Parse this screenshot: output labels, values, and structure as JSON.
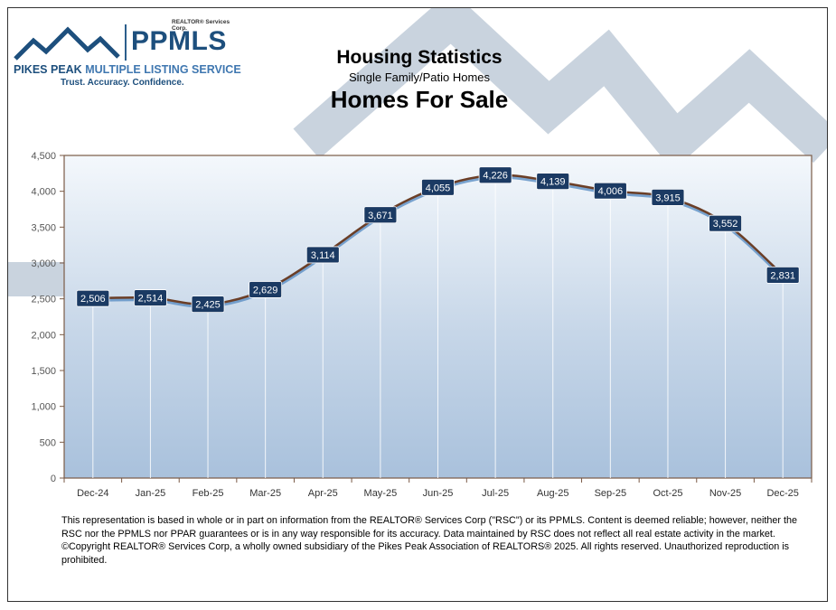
{
  "header": {
    "logo": {
      "realtor_corp": "REALTOR® Services Corp.",
      "ppmls": "PPMLS",
      "full_name_pikes_peak": "PIKES PEAK",
      "full_name_rest": "MULTIPLE LISTING SERVICE",
      "tagline": "Trust. Accuracy. Confidence."
    },
    "title": "Housing Statistics",
    "subtitle": "Single Family/Patio Homes",
    "chart_title": "Homes For Sale"
  },
  "colors": {
    "brand": "#1d4f7d",
    "watermark": "#c9d3de",
    "plot_top": "#f4f8fc",
    "plot_bottom": "#a9c1dc",
    "line": "#6b3e26",
    "label_bg": "#1b3a63"
  },
  "chart_data": {
    "type": "line",
    "title": "Homes For Sale",
    "xlabel": "",
    "ylabel": "",
    "categories": [
      "Dec-24",
      "Jan-25",
      "Feb-25",
      "Mar-25",
      "Apr-25",
      "May-25",
      "Jun-25",
      "Jul-25",
      "Aug-25",
      "Sep-25",
      "Oct-25",
      "Nov-25",
      "Dec-25"
    ],
    "series": [
      {
        "name": "Homes For Sale",
        "values": [
          2506,
          2514,
          2425,
          2629,
          3114,
          3671,
          4055,
          4226,
          4139,
          4006,
          3915,
          3552,
          2831
        ],
        "labels": [
          "2,506",
          "2,514",
          "2,425",
          "2,629",
          "3,114",
          "3,671",
          "4,055",
          "4,226",
          "4,139",
          "4,006",
          "3,915",
          "3,552",
          "2,831"
        ]
      }
    ],
    "ylim": [
      0,
      4500
    ],
    "yticks": [
      0,
      500,
      1000,
      1500,
      2000,
      2500,
      3000,
      3500,
      4000,
      4500
    ],
    "ytick_labels": [
      "0",
      "500",
      "1,000",
      "1,500",
      "2,000",
      "2,500",
      "3,000",
      "3,500",
      "4,000",
      "4,500"
    ],
    "grid": false,
    "legend": "none"
  },
  "footer": {
    "disclaimer": "This representation is based in whole or in part on information from the REALTOR® Services Corp (\"RSC\") or its PPMLS. Content is deemed reliable; however, neither the RSC nor the PPMLS nor PPAR guarantees or is in any way responsible for its accuracy. Data maintained by RSC does not reflect all real estate activity in the market. ©Copyright REALTOR® Services Corp, a wholly owned subsidiary of the Pikes Peak Association of REALTORS® 2025. All rights reserved. Unauthorized reproduction is prohibited."
  }
}
